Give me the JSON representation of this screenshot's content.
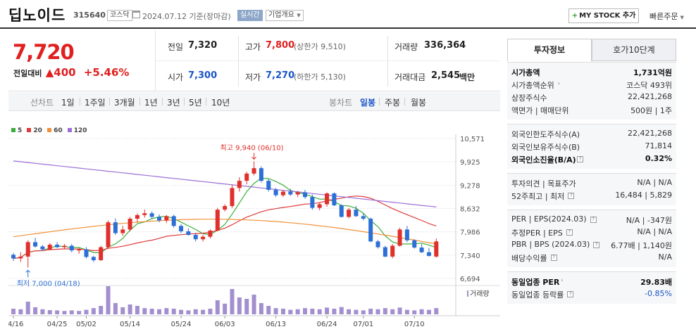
{
  "header": {
    "name": "딥노이드",
    "code": "315640",
    "market_tag": "코스닥",
    "date_text": "2024.07.12 기준(장마감)",
    "realtime_tag": "실시간",
    "company_tag": "기업개요",
    "my_stock_button": "MY STOCK 추가",
    "quick_order": "빠른주문"
  },
  "price": {
    "current": "7,720",
    "change_label": "전일대비",
    "change_value": "▲400",
    "change_pct": "+5.46%"
  },
  "quotes": {
    "prev_close_label": "전일",
    "prev_close": "7,320",
    "open_label": "시가",
    "open": "7,300",
    "high_label": "고가",
    "high": "7,800",
    "upper_limit": "(상한가 9,510)",
    "low_label": "저가",
    "low": "7,270",
    "lower_limit": "(하한가 5,130)",
    "volume_label": "거래량",
    "volume": "336,364",
    "amount_label": "거래대금",
    "amount": "2,545",
    "amount_unit": "백만"
  },
  "chart_tabs": {
    "line_label": "선차트",
    "line_periods": [
      "1일",
      "1주일",
      "3개월",
      "1년",
      "3년",
      "5년",
      "10년"
    ],
    "candle_label": "봉차트",
    "candle_periods": [
      "일봉",
      "주봉",
      "월봉"
    ],
    "selected": "일봉"
  },
  "chart_data": {
    "type": "candlestick",
    "legend": [
      {
        "name": "5",
        "color": "#3aae3a"
      },
      {
        "name": "20",
        "color": "#e03a3a"
      },
      {
        "name": "60",
        "color": "#f0913a"
      },
      {
        "name": "120",
        "color": "#9b6fd6"
      }
    ],
    "yticks": [
      "10,571",
      "9,925",
      "9,278",
      "8,632",
      "7,986",
      "7,340",
      "6,694"
    ],
    "ylim": [
      6694,
      10571
    ],
    "x_labels": [
      "04/16",
      "04/25",
      "05/02",
      "05/14",
      "05/24",
      "06/03",
      "06/13",
      "06/24",
      "07/01",
      "07/10"
    ],
    "x_label_index": [
      0,
      6,
      10,
      16,
      23,
      29,
      36,
      43,
      48,
      55
    ],
    "high_annotation": "최고 9,940 (06/10)",
    "low_annotation": "최저 7,000 (04/18)",
    "high_index": 33,
    "low_index": 2,
    "volume_label": "거래량",
    "ohlc": [
      [
        7350,
        7400,
        7180,
        7250
      ],
      [
        7250,
        7420,
        7150,
        7300
      ],
      [
        7300,
        7750,
        7000,
        7700
      ],
      [
        7700,
        7820,
        7550,
        7580
      ],
      [
        7580,
        7620,
        7450,
        7500
      ],
      [
        7500,
        7680,
        7470,
        7630
      ],
      [
        7630,
        7700,
        7540,
        7560
      ],
      [
        7560,
        7650,
        7520,
        7600
      ],
      [
        7600,
        7650,
        7420,
        7470
      ],
      [
        7470,
        7540,
        7380,
        7500
      ],
      [
        7500,
        7560,
        7250,
        7290
      ],
      [
        7290,
        7320,
        7150,
        7200
      ],
      [
        7200,
        7600,
        7180,
        7560
      ],
      [
        7560,
        8300,
        7520,
        8250
      ],
      [
        8250,
        8360,
        7900,
        7950
      ],
      [
        7950,
        8150,
        7880,
        8050
      ],
      [
        8050,
        8400,
        8000,
        8350
      ],
      [
        8350,
        8500,
        8250,
        8450
      ],
      [
        8450,
        8600,
        8380,
        8500
      ],
      [
        8500,
        8550,
        8350,
        8400
      ],
      [
        8400,
        8470,
        8250,
        8300
      ],
      [
        8300,
        8450,
        8230,
        8420
      ],
      [
        8420,
        8460,
        8100,
        8150
      ],
      [
        8150,
        8200,
        7950,
        8000
      ],
      [
        8000,
        8080,
        7880,
        7900
      ],
      [
        7900,
        7960,
        7720,
        7780
      ],
      [
        7780,
        7900,
        7720,
        7850
      ],
      [
        7850,
        8050,
        7800,
        8020
      ],
      [
        8020,
        8650,
        8000,
        8600
      ],
      [
        8600,
        8750,
        8550,
        8700
      ],
      [
        8700,
        9300,
        8650,
        9200
      ],
      [
        9200,
        9500,
        9100,
        9400
      ],
      [
        9400,
        9650,
        9300,
        9600
      ],
      [
        9600,
        9940,
        9550,
        9750
      ],
      [
        9750,
        9800,
        9350,
        9400
      ],
      [
        9400,
        9450,
        9100,
        9150
      ],
      [
        9150,
        9200,
        8950,
        9000
      ],
      [
        9000,
        9150,
        8950,
        9100
      ],
      [
        9100,
        9180,
        8980,
        9020
      ],
      [
        9020,
        9120,
        8950,
        9080
      ],
      [
        9080,
        9150,
        8900,
        8950
      ],
      [
        8950,
        9020,
        8600,
        8650
      ],
      [
        8650,
        8800,
        8580,
        8750
      ],
      [
        8750,
        9080,
        8680,
        9050
      ],
      [
        9050,
        9080,
        8700,
        8720
      ],
      [
        8720,
        8750,
        8380,
        8400
      ],
      [
        8400,
        8650,
        8360,
        8600
      ],
      [
        8600,
        8700,
        8400,
        8420
      ],
      [
        8420,
        8500,
        8300,
        8350
      ],
      [
        8350,
        8380,
        7700,
        7720
      ],
      [
        7720,
        7760,
        7520,
        7560
      ],
      [
        7560,
        7600,
        7280,
        7300
      ],
      [
        7300,
        7650,
        7250,
        7600
      ],
      [
        7600,
        8100,
        7580,
        8050
      ],
      [
        8050,
        8150,
        7700,
        7750
      ],
      [
        7750,
        7780,
        7520,
        7550
      ],
      [
        7550,
        7650,
        7400,
        7420
      ],
      [
        7420,
        7540,
        7300,
        7320
      ],
      [
        7300,
        7800,
        7270,
        7720
      ]
    ],
    "volume": [
      20,
      18,
      45,
      25,
      18,
      15,
      14,
      12,
      14,
      12,
      16,
      22,
      30,
      100,
      40,
      25,
      35,
      30,
      22,
      20,
      18,
      22,
      20,
      16,
      14,
      18,
      16,
      20,
      50,
      38,
      90,
      60,
      55,
      70,
      40,
      30,
      22,
      20,
      16,
      18,
      22,
      20,
      18,
      24,
      20,
      26,
      18,
      16,
      14,
      20,
      18,
      22,
      18,
      24,
      16,
      14,
      18,
      16,
      22
    ]
  },
  "info_panel": {
    "tab_invest": "투자정보",
    "tab_quote": "호가10단계",
    "sections": [
      [
        {
          "k": "시가총액",
          "v": "1,731억원",
          "bold": true
        },
        {
          "k": "시가총액순위",
          "v": "코스닥 493위",
          "arrow": true
        },
        {
          "k": "상장주식수",
          "v": "22,421,268"
        },
        {
          "k": "액면가 | 매매단위",
          "v": "500원 | 1주"
        }
      ],
      [
        {
          "k": "외국인한도주식수(A)",
          "v": "22,421,268"
        },
        {
          "k": "외국인보유주식수(B)",
          "v": "71,814"
        },
        {
          "k": "외국인소진율(B/A)",
          "v": "0.32%",
          "bold": true,
          "help": true
        }
      ],
      [
        {
          "k": "투자의견 | 목표주가",
          "v": "N/A | N/A"
        },
        {
          "k": "52주최고 | 최저",
          "v": "16,484 | 5,829",
          "help": true
        }
      ],
      [
        {
          "k": "PER | EPS(2024.03)",
          "v": "N/A | -347원",
          "help": true
        },
        {
          "k": "추정PER | EPS",
          "v": "N/A | N/A",
          "help": true
        },
        {
          "k": "PBR | BPS (2024.03)",
          "v": "6.77배 | 1,140원",
          "help": true
        },
        {
          "k": "배당수익률",
          "v": "N/A",
          "help": true
        }
      ],
      [
        {
          "k": "동일업종 PER",
          "v": "29.83배",
          "bold": true,
          "arrow": true
        },
        {
          "k": "동일업종 등락률",
          "v": "-0.85%",
          "blue": true,
          "help": true
        }
      ]
    ]
  }
}
